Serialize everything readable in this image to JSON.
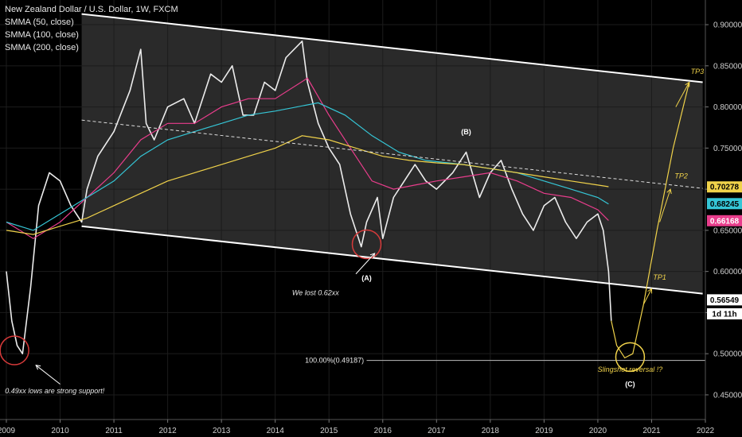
{
  "legend": {
    "title": "New Zealand Dollar / U.S. Dollar, 1W, FXCM",
    "line1": "SMMA (50, close)",
    "line2": "SMMA (100, close)",
    "line3": "SMMA (200, close)"
  },
  "chart_data": {
    "type": "line",
    "title": "New Zealand Dollar / U.S. Dollar, 1W, FXCM",
    "x_ticks": [
      "2009",
      "2010",
      "2011",
      "2012",
      "2013",
      "2014",
      "2015",
      "2016",
      "2017",
      "2018",
      "2019",
      "2020",
      "2021",
      "2022"
    ],
    "y_ticks": [
      "0.90000",
      "0.85000",
      "0.80000",
      "0.75000",
      "0.70000",
      "0.65000",
      "0.60000",
      "0.55000",
      "0.50000",
      "0.45000"
    ],
    "ylim": [
      0.42,
      0.93
    ],
    "xlim": [
      2009.0,
      2022.0
    ],
    "price": {
      "x": [
        2009.0,
        2009.1,
        2009.2,
        2009.3,
        2009.45,
        2009.6,
        2009.8,
        2010.0,
        2010.2,
        2010.4,
        2010.5,
        2010.7,
        2011.0,
        2011.3,
        2011.5,
        2011.6,
        2011.75,
        2012.0,
        2012.3,
        2012.5,
        2012.8,
        2013.0,
        2013.2,
        2013.4,
        2013.6,
        2013.8,
        2014.0,
        2014.2,
        2014.5,
        2014.6,
        2014.8,
        2015.0,
        2015.2,
        2015.4,
        2015.6,
        2015.7,
        2015.9,
        2016.0,
        2016.2,
        2016.4,
        2016.6,
        2016.8,
        2017.0,
        2017.3,
        2017.55,
        2017.8,
        2018.0,
        2018.2,
        2018.4,
        2018.6,
        2018.8,
        2019.0,
        2019.2,
        2019.4,
        2019.6,
        2019.8,
        2020.0,
        2020.1,
        2020.2,
        2020.25
      ],
      "y": [
        0.6,
        0.54,
        0.51,
        0.5,
        0.58,
        0.68,
        0.72,
        0.71,
        0.68,
        0.66,
        0.7,
        0.74,
        0.77,
        0.82,
        0.87,
        0.78,
        0.76,
        0.8,
        0.81,
        0.78,
        0.84,
        0.83,
        0.85,
        0.79,
        0.79,
        0.83,
        0.82,
        0.86,
        0.88,
        0.83,
        0.78,
        0.75,
        0.73,
        0.67,
        0.63,
        0.66,
        0.69,
        0.64,
        0.69,
        0.71,
        0.73,
        0.71,
        0.7,
        0.72,
        0.745,
        0.69,
        0.72,
        0.735,
        0.7,
        0.67,
        0.65,
        0.68,
        0.69,
        0.66,
        0.64,
        0.66,
        0.67,
        0.65,
        0.6,
        0.54
      ]
    },
    "series": [
      {
        "name": "SMMA (50, close)",
        "color": "#e93d8c",
        "x": [
          2009.0,
          2009.5,
          2010.0,
          2010.5,
          2011.0,
          2011.5,
          2012.0,
          2012.5,
          2013.0,
          2013.5,
          2014.0,
          2014.6,
          2015.0,
          2015.4,
          2015.8,
          2016.2,
          2016.6,
          2017.0,
          2017.5,
          2018.0,
          2018.5,
          2019.0,
          2019.5,
          2020.0,
          2020.2
        ],
        "y": [
          0.66,
          0.64,
          0.66,
          0.69,
          0.72,
          0.76,
          0.78,
          0.78,
          0.8,
          0.81,
          0.81,
          0.835,
          0.79,
          0.75,
          0.71,
          0.7,
          0.705,
          0.71,
          0.715,
          0.72,
          0.71,
          0.695,
          0.69,
          0.675,
          0.662
        ]
      },
      {
        "name": "SMMA (100, close)",
        "color": "#35c6d6",
        "x": [
          2009.0,
          2009.5,
          2010.0,
          2010.5,
          2011.0,
          2011.5,
          2012.0,
          2012.5,
          2013.0,
          2013.5,
          2014.0,
          2014.8,
          2015.3,
          2015.8,
          2016.3,
          2016.8,
          2017.5,
          2018.0,
          2018.5,
          2019.0,
          2019.5,
          2020.0,
          2020.2
        ],
        "y": [
          0.66,
          0.65,
          0.67,
          0.69,
          0.71,
          0.74,
          0.76,
          0.77,
          0.78,
          0.79,
          0.795,
          0.805,
          0.79,
          0.765,
          0.745,
          0.735,
          0.73,
          0.725,
          0.72,
          0.71,
          0.7,
          0.69,
          0.682
        ]
      },
      {
        "name": "SMMA (200, close)",
        "color": "#f0d24a",
        "x": [
          2009.0,
          2009.5,
          2010.0,
          2010.5,
          2011.0,
          2011.5,
          2012.0,
          2012.5,
          2013.0,
          2013.5,
          2014.0,
          2014.5,
          2015.0,
          2015.5,
          2016.0,
          2016.5,
          2017.0,
          2017.5,
          2018.0,
          2018.5,
          2019.0,
          2019.5,
          2020.0,
          2020.2
        ],
        "y": [
          0.65,
          0.645,
          0.655,
          0.665,
          0.68,
          0.695,
          0.71,
          0.72,
          0.73,
          0.74,
          0.75,
          0.765,
          0.76,
          0.75,
          0.74,
          0.735,
          0.732,
          0.73,
          0.725,
          0.72,
          0.715,
          0.71,
          0.705,
          0.703
        ]
      }
    ],
    "channel": {
      "upper": {
        "x": [
          2010.4,
          2021.95
        ],
        "y": [
          0.913,
          0.83
        ]
      },
      "lower": {
        "x": [
          2010.4,
          2021.95
        ],
        "y": [
          0.655,
          0.573
        ]
      },
      "mid": {
        "x": [
          2010.4,
          2021.95
        ],
        "y": [
          0.784,
          0.701
        ]
      }
    },
    "fib_level": {
      "value": 0.49187,
      "label": "100.00%(0.49187)"
    },
    "projection": {
      "x": [
        2020.25,
        2020.35,
        2020.5,
        2020.65,
        2020.85,
        2021.1,
        2021.4,
        2021.7
      ],
      "y": [
        0.54,
        0.51,
        0.495,
        0.5,
        0.56,
        0.65,
        0.75,
        0.83
      ]
    },
    "price_tags": [
      {
        "label": "0.70278",
        "value": 0.70278,
        "bg": "#f0d24a",
        "fg": "#000000"
      },
      {
        "label": "0.68245",
        "value": 0.68245,
        "bg": "#35c6d6",
        "fg": "#000000"
      },
      {
        "label": "0.66168",
        "value": 0.66168,
        "bg": "#e93d8c",
        "fg": "#ffffff"
      },
      {
        "label": "0.56549",
        "value": 0.56549,
        "bg": "#ffffff",
        "fg": "#000000"
      },
      {
        "label": "1d 11h",
        "value": 0.5485,
        "bg": "#ffffff",
        "fg": "#000000"
      }
    ],
    "annotations": [
      {
        "text": "(B)",
        "x": 2017.55,
        "y": 0.767,
        "style": "anno-b"
      },
      {
        "text": "(A)",
        "x": 2015.7,
        "y": 0.589,
        "style": "anno-b"
      },
      {
        "text": "(C)",
        "x": 2020.6,
        "y": 0.46,
        "style": "anno-b"
      },
      {
        "text": "We lost 0.62xx",
        "x": 2014.75,
        "y": 0.571,
        "style": "anno-w"
      },
      {
        "text": "0.49xx lows are strong support!",
        "x": 2009.9,
        "y": 0.452,
        "style": "anno-w"
      },
      {
        "text": "Slingshot reversal !?",
        "x": 2020.6,
        "y": 0.478,
        "style": "anno-y"
      },
      {
        "text": "TP1",
        "x": 2021.15,
        "y": 0.59,
        "style": "anno-y"
      },
      {
        "text": "TP2",
        "x": 2021.55,
        "y": 0.713,
        "style": "anno-y"
      },
      {
        "text": "TP3",
        "x": 2021.85,
        "y": 0.84,
        "style": "anno-y"
      }
    ],
    "circles": [
      {
        "x": 2009.15,
        "y": 0.504,
        "color": "#d63a3a"
      },
      {
        "x": 2015.7,
        "y": 0.633,
        "color": "#d63a3a"
      },
      {
        "x": 2020.6,
        "y": 0.496,
        "color": "#f0d24a"
      }
    ],
    "arrows": [
      {
        "x1": 2015.5,
        "y1": 0.597,
        "x2": 2015.85,
        "y2": 0.622,
        "color": "#ffffff"
      },
      {
        "x1": 2010.0,
        "y1": 0.463,
        "x2": 2009.55,
        "y2": 0.486,
        "color": "#ffffff"
      },
      {
        "x1": 2020.85,
        "y1": 0.56,
        "x2": 2021.0,
        "y2": 0.579,
        "color": "#f0d24a"
      },
      {
        "x1": 2021.15,
        "y1": 0.66,
        "x2": 2021.35,
        "y2": 0.7,
        "color": "#f0d24a"
      },
      {
        "x1": 2021.45,
        "y1": 0.8,
        "x2": 2021.7,
        "y2": 0.83,
        "color": "#f0d24a"
      }
    ]
  }
}
